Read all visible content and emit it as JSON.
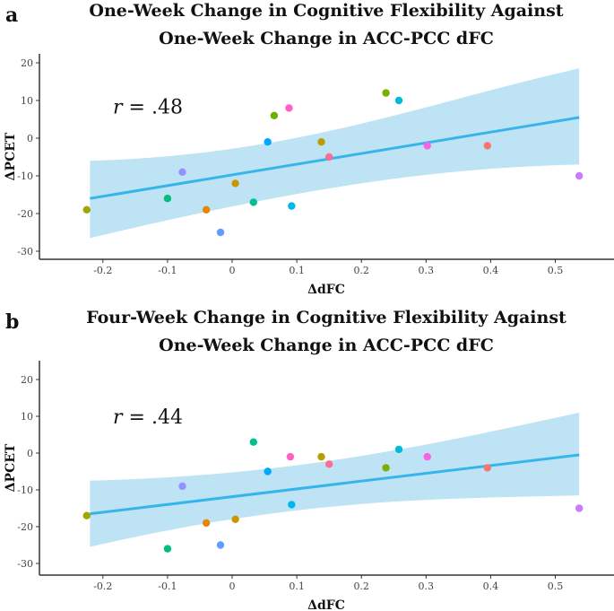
{
  "chart_data": [
    {
      "type": "scatter",
      "panel_label": "a",
      "title_lines": [
        "One-Week Change in Cognitive Flexibility Against",
        "One-Week Change in ACC-PCC dFC"
      ],
      "xlabel": "ΔdFC",
      "ylabel": "ΔPCET",
      "annotation_r": "r",
      "annotation_value": " = .48",
      "xlim": [
        -0.29,
        0.57
      ],
      "ylim": [
        -32,
        22
      ],
      "xticks": [
        -0.2,
        -0.1,
        0,
        0.1,
        0.2,
        0.3,
        0.4,
        0.5
      ],
      "xtick_labels": [
        "-0.2",
        "-0.1",
        "0",
        "0.1",
        "0.2",
        "0.3",
        "0.4",
        "0.5"
      ],
      "yticks": [
        20,
        10,
        0,
        -10,
        -20,
        -30
      ],
      "ytick_labels": [
        "20",
        "10",
        "0",
        "-10",
        "-20",
        "-30"
      ],
      "grid": false,
      "points": [
        {
          "x": -0.225,
          "y": -19,
          "color": "#A3A500"
        },
        {
          "x": -0.1,
          "y": -16,
          "color": "#00BF7D"
        },
        {
          "x": -0.077,
          "y": -9,
          "color": "#9590FF"
        },
        {
          "x": -0.04,
          "y": -19,
          "color": "#E58700"
        },
        {
          "x": -0.018,
          "y": -25,
          "color": "#619CFF"
        },
        {
          "x": 0.005,
          "y": -12,
          "color": "#C99800"
        },
        {
          "x": 0.033,
          "y": -17,
          "color": "#00C08B"
        },
        {
          "x": 0.055,
          "y": -1,
          "color": "#00A9FF"
        },
        {
          "x": 0.065,
          "y": 6,
          "color": "#6BB100"
        },
        {
          "x": 0.088,
          "y": 8,
          "color": "#FF61C3"
        },
        {
          "x": 0.092,
          "y": -18,
          "color": "#00B8E7"
        },
        {
          "x": 0.138,
          "y": -1,
          "color": "#B79F00"
        },
        {
          "x": 0.15,
          "y": -5,
          "color": "#FF6C91"
        },
        {
          "x": 0.238,
          "y": 12,
          "color": "#7CAE00"
        },
        {
          "x": 0.258,
          "y": 10,
          "color": "#00BCD8"
        },
        {
          "x": 0.302,
          "y": -2,
          "color": "#F564E3"
        },
        {
          "x": 0.395,
          "y": -2,
          "color": "#F8766D"
        },
        {
          "x": 0.537,
          "y": -10,
          "color": "#C77CFF"
        }
      ],
      "fit": {
        "x": [
          -0.22,
          0.537
        ],
        "y": [
          -16,
          5.5
        ],
        "ci_low": [
          -26.5,
          -7
        ],
        "ci_high": [
          -6,
          18.5
        ],
        "line_color": "#35B5EA",
        "band_color": "#BDE3F5"
      }
    },
    {
      "type": "scatter",
      "panel_label": "b",
      "title_lines": [
        "Four-Week Change in Cognitive Flexibility Against",
        "One-Week Change in ACC-PCC dFC"
      ],
      "xlabel": "ΔdFC",
      "ylabel": "ΔPCET",
      "annotation_r": "r",
      "annotation_value": " = .44",
      "xlim": [
        -0.29,
        0.57
      ],
      "ylim": [
        -32,
        22
      ],
      "xticks": [
        -0.2,
        -0.1,
        0,
        0.1,
        0.2,
        0.3,
        0.4,
        0.5
      ],
      "xtick_labels": [
        "-0.2",
        "-0.1",
        "0",
        "0.1",
        "0.2",
        "0.3",
        "0.4",
        "0.5"
      ],
      "yticks": [
        20,
        10,
        0,
        -10,
        -20,
        -30
      ],
      "ytick_labels": [
        "20",
        "10",
        "0",
        "-10",
        "-20",
        "-30"
      ],
      "grid": false,
      "points": [
        {
          "x": -0.225,
          "y": -17,
          "color": "#A3A500"
        },
        {
          "x": -0.1,
          "y": -26,
          "color": "#00BF7D"
        },
        {
          "x": -0.077,
          "y": -9,
          "color": "#9590FF"
        },
        {
          "x": -0.04,
          "y": -19,
          "color": "#E58700"
        },
        {
          "x": -0.018,
          "y": -25,
          "color": "#619CFF"
        },
        {
          "x": 0.005,
          "y": -18,
          "color": "#C99800"
        },
        {
          "x": 0.033,
          "y": 3,
          "color": "#00C08B"
        },
        {
          "x": 0.055,
          "y": -5,
          "color": "#00A9FF"
        },
        {
          "x": 0.09,
          "y": -1,
          "color": "#FF61C3"
        },
        {
          "x": 0.092,
          "y": -14,
          "color": "#00B8E7"
        },
        {
          "x": 0.138,
          "y": -1,
          "color": "#B79F00"
        },
        {
          "x": 0.15,
          "y": -3,
          "color": "#FF6C91"
        },
        {
          "x": 0.238,
          "y": -4,
          "color": "#7CAE00"
        },
        {
          "x": 0.258,
          "y": 1,
          "color": "#00BCD8"
        },
        {
          "x": 0.302,
          "y": -1,
          "color": "#F564E3"
        },
        {
          "x": 0.395,
          "y": -4,
          "color": "#F8766D"
        },
        {
          "x": 0.537,
          "y": -15,
          "color": "#C77CFF"
        }
      ],
      "fit": {
        "x": [
          -0.22,
          0.537
        ],
        "y": [
          -16.5,
          -0.5
        ],
        "ci_low": [
          -25.5,
          -11.5
        ],
        "ci_high": [
          -7.5,
          11
        ],
        "line_color": "#35B5EA",
        "band_color": "#BDE3F5"
      }
    }
  ]
}
